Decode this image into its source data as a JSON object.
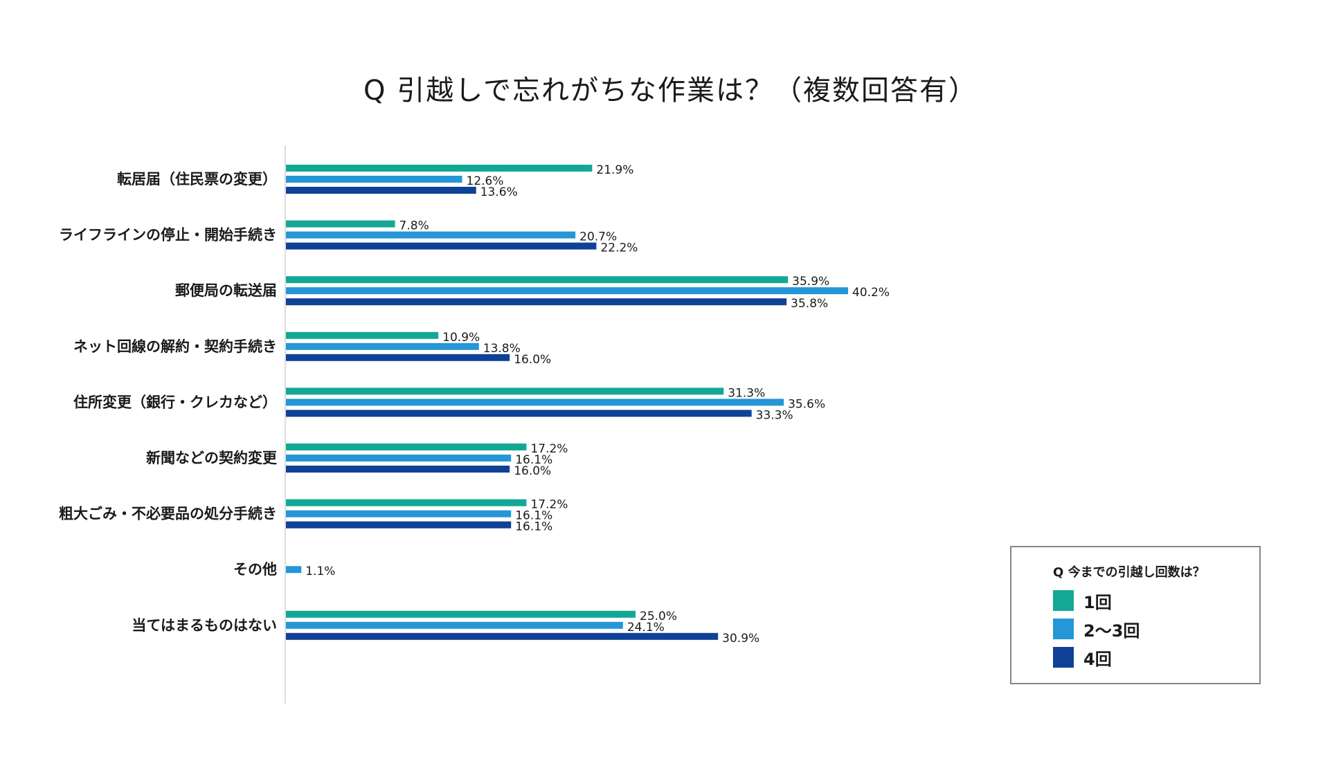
{
  "chart_data": {
    "type": "bar",
    "orientation": "horizontal",
    "title": "Q 引越しで忘れがちな作業は？（複数回答有）",
    "categories": [
      "転居届（住民票の変更）",
      "ライフラインの停止・開始手続き",
      "郵便局の転送届",
      "ネット回線の解約・契約手続き",
      "住所変更（銀行・クレカなど）",
      "新聞などの契約変更",
      "粗大ごみ・不必要品の処分手続き",
      "その他",
      "当てはまるものはない"
    ],
    "series": [
      {
        "name": "1回",
        "color": "#13a896",
        "values": [
          21.9,
          7.8,
          35.9,
          10.9,
          31.3,
          17.2,
          17.2,
          null,
          25.0
        ],
        "labels": [
          "21.9%",
          "7.8%",
          "35.9%",
          "10.9%",
          "31.3%",
          "17.2%",
          "17.2%",
          null,
          "25.0%"
        ]
      },
      {
        "name": "2〜3回",
        "color": "#2596d6",
        "values": [
          12.6,
          20.7,
          40.2,
          13.8,
          35.6,
          16.1,
          16.1,
          1.1,
          24.1
        ],
        "labels": [
          "12.6%",
          "20.7%",
          "40.2%",
          "13.8%",
          "35.6%",
          "16.1%",
          "16.1%",
          "1.1%",
          "24.1%"
        ]
      },
      {
        "name": "4回",
        "color": "#0f4196",
        "values": [
          13.6,
          22.2,
          35.8,
          16.0,
          33.3,
          16.0,
          16.1,
          null,
          30.9
        ],
        "labels": [
          "13.6%",
          "22.2%",
          "35.8%",
          "16.0%",
          "33.3%",
          "16.0%",
          "16.1%",
          null,
          "30.9%"
        ]
      }
    ],
    "xlim": [
      0,
      100
    ],
    "grid": false,
    "legend": {
      "title": "Q 今までの引越し回数は？",
      "position": "bottom-right"
    }
  }
}
